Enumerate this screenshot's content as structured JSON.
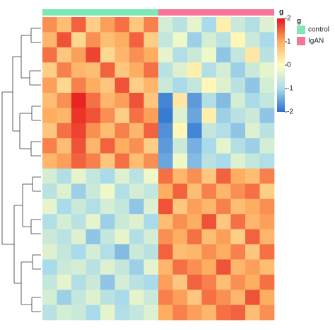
{
  "chart_data": {
    "type": "heatmap",
    "groups": [
      {
        "name": "control",
        "color": "#7ee8b4",
        "columns": 8
      },
      {
        "name": "IgAN",
        "color": "#f7749b",
        "columns": 8
      }
    ],
    "legend_title": "g",
    "colorbar_title": "g",
    "clim": [
      -2,
      2
    ],
    "color_ticks": [
      2,
      1,
      0,
      -1,
      -2
    ],
    "colorscale": [
      {
        "value": -2,
        "color": "#2c6fd0"
      },
      {
        "value": -1,
        "color": "#a9dbea"
      },
      {
        "value": 0,
        "color": "#ffffc0"
      },
      {
        "value": 1,
        "color": "#fdae61"
      },
      {
        "value": 2,
        "color": "#e8151b"
      }
    ],
    "values": [
      [
        1.2,
        0.8,
        1.5,
        0.6,
        1.1,
        1.4,
        0.7,
        1.3,
        -0.5,
        -0.8,
        -0.3,
        -1.0,
        0.2,
        -0.6,
        -0.9,
        -0.4
      ],
      [
        0.9,
        1.6,
        0.5,
        1.2,
        0.8,
        1.0,
        1.5,
        0.6,
        -0.7,
        -0.2,
        -1.1,
        -0.5,
        -0.8,
        0.1,
        -0.6,
        -1.0
      ],
      [
        1.4,
        0.7,
        1.1,
        1.7,
        0.5,
        0.9,
        1.2,
        1.0,
        -0.3,
        -0.9,
        -0.6,
        -0.2,
        -1.2,
        -0.7,
        0.3,
        -0.8
      ],
      [
        0.6,
        1.3,
        0.9,
        0.8,
        1.5,
        0.7,
        1.0,
        1.4,
        -0.8,
        -0.4,
        0.2,
        -0.9,
        -0.5,
        -1.1,
        -0.6,
        -0.3
      ],
      [
        1.1,
        0.5,
        1.3,
        1.0,
        0.7,
        1.6,
        0.6,
        0.9,
        -0.6,
        -1.0,
        -0.7,
        0.1,
        -0.4,
        -0.8,
        -1.2,
        -0.5
      ],
      [
        0.8,
        1.2,
        1.9,
        1.4,
        0.9,
        1.1,
        1.6,
        0.7,
        -1.8,
        0.3,
        -1.6,
        -0.9,
        -1.3,
        -0.5,
        -1.0,
        -0.7
      ],
      [
        1.0,
        0.9,
        1.8,
        1.6,
        1.2,
        0.6,
        1.4,
        1.1,
        -1.9,
        -0.4,
        -1.5,
        0.2,
        -1.1,
        -0.8,
        -0.6,
        -1.2
      ],
      [
        0.7,
        1.4,
        1.7,
        1.2,
        0.8,
        1.3,
        0.9,
        1.5,
        -1.7,
        0.1,
        -1.8,
        -0.7,
        -0.9,
        -1.2,
        -0.4,
        -0.8
      ],
      [
        1.3,
        0.8,
        1.6,
        0.9,
        1.5,
        1.0,
        1.2,
        0.6,
        -1.6,
        -0.6,
        -1.4,
        -1.0,
        -0.3,
        -0.9,
        -1.1,
        -0.5
      ],
      [
        0.9,
        1.1,
        1.5,
        1.3,
        0.7,
        1.4,
        0.8,
        1.2,
        -1.5,
        -0.2,
        -1.3,
        -0.8,
        -1.0,
        -0.4,
        -0.7,
        -0.9
      ],
      [
        -0.5,
        -0.9,
        -0.3,
        -0.7,
        -1.0,
        -0.4,
        -0.8,
        -0.2,
        1.4,
        0.9,
        1.2,
        0.7,
        1.5,
        1.0,
        0.8,
        1.3
      ],
      [
        -0.8,
        -0.4,
        -1.1,
        -0.6,
        -0.2,
        -0.9,
        -0.5,
        -0.7,
        1.0,
        1.5,
        0.8,
        1.3,
        0.9,
        1.2,
        1.4,
        0.6
      ],
      [
        -0.3,
        -1.0,
        -0.6,
        -0.9,
        -0.5,
        -0.7,
        -1.2,
        -0.4,
        1.6,
        0.7,
        1.1,
        0.9,
        1.3,
        0.8,
        1.0,
        1.2
      ],
      [
        -0.9,
        -0.5,
        -0.8,
        -0.3,
        -1.1,
        -0.6,
        -0.4,
        -1.0,
        0.8,
        1.2,
        1.0,
        1.6,
        0.7,
        1.4,
        0.9,
        1.1
      ],
      [
        -0.6,
        -0.8,
        -0.4,
        -1.2,
        -0.7,
        -0.3,
        -0.9,
        -0.5,
        1.2,
        1.0,
        1.4,
        0.8,
        1.1,
        0.6,
        1.5,
        0.9
      ],
      [
        -0.4,
        -0.7,
        -1.0,
        -0.5,
        -0.9,
        -1.3,
        -0.6,
        -0.8,
        1.5,
        0.8,
        0.9,
        1.2,
        1.0,
        1.3,
        0.7,
        1.4
      ],
      [
        -1.0,
        -0.6,
        -0.5,
        -0.8,
        -0.4,
        -0.7,
        -1.1,
        -0.3,
        0.9,
        1.4,
        1.2,
        1.0,
        1.6,
        0.9,
        1.1,
        0.8
      ],
      [
        -0.7,
        -0.3,
        -0.9,
        -0.6,
        -1.2,
        -0.5,
        -0.8,
        -1.0,
        1.1,
        0.7,
        1.5,
        1.3,
        0.8,
        1.2,
        1.0,
        1.4
      ],
      [
        -0.5,
        -1.1,
        -0.7,
        -0.4,
        -0.8,
        -1.0,
        -0.3,
        -0.6,
        1.3,
        1.1,
        0.7,
        1.4,
        1.2,
        0.9,
        1.6,
        1.0
      ],
      [
        -0.8,
        -0.5,
        -0.6,
        -1.0,
        -0.3,
        -0.9,
        -0.7,
        -0.4,
        1.0,
        1.3,
        1.1,
        0.9,
        1.4,
        1.5,
        0.8,
        1.2
      ]
    ]
  }
}
